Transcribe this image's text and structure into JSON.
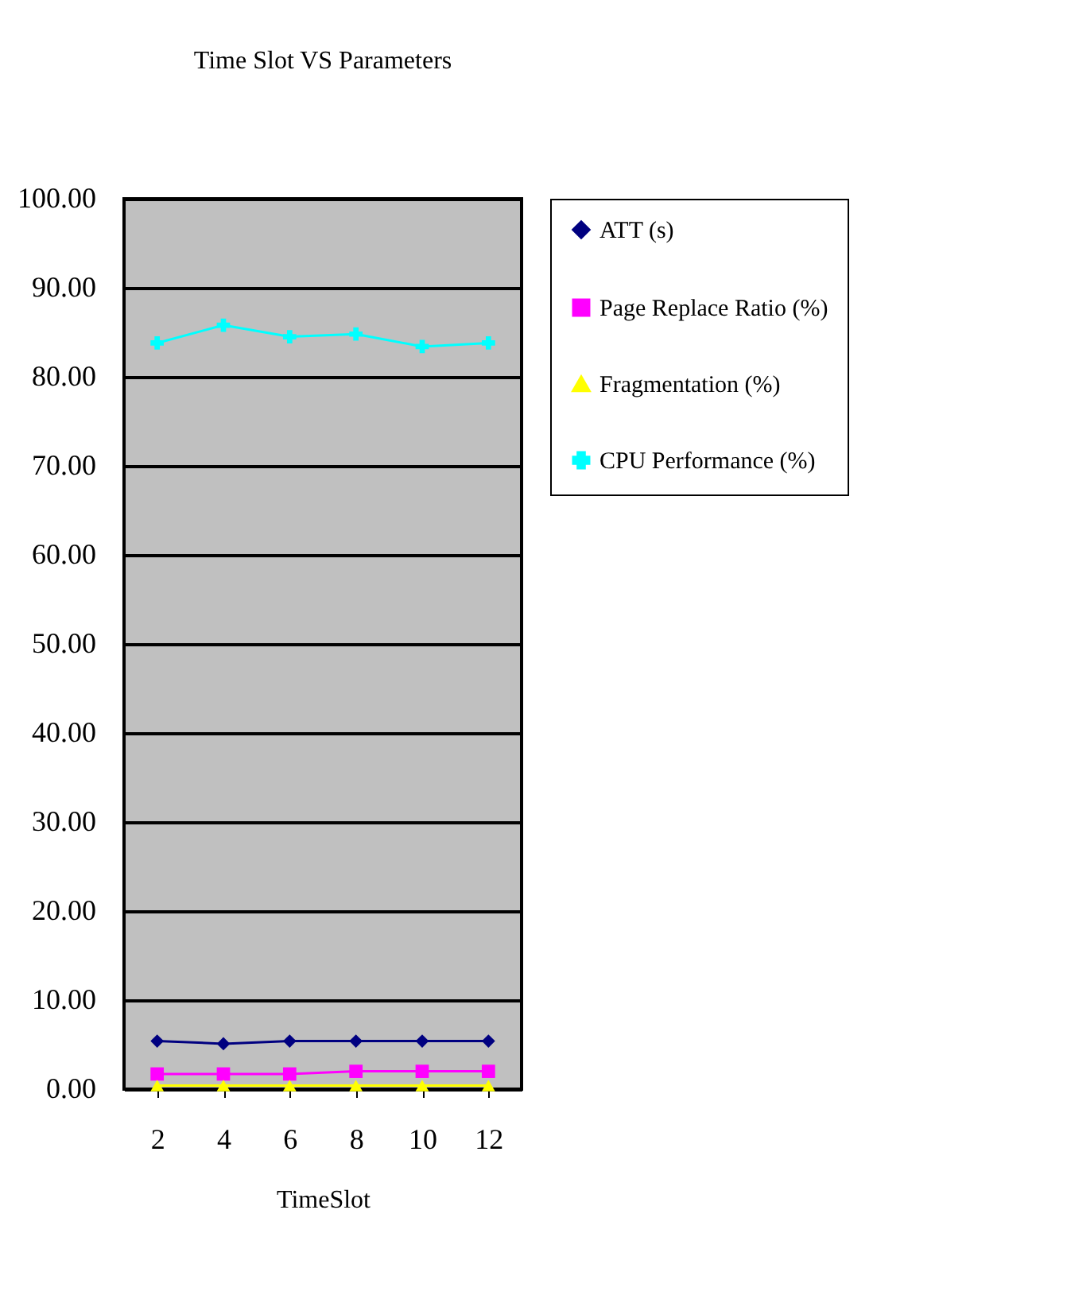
{
  "chart_data": {
    "type": "line",
    "title": "Time Slot VS Parameters",
    "xlabel": "TimeSlot",
    "categories": [
      "2",
      "4",
      "6",
      "8",
      "10",
      "12"
    ],
    "series": [
      {
        "name": "ATT (s)",
        "color": "#000080",
        "marker": "diamond",
        "values": [
          5.4,
          5.1,
          5.4,
          5.4,
          5.4,
          5.4
        ]
      },
      {
        "name": "Page Replace Ratio (%)",
        "color": "#ff00ff",
        "marker": "square",
        "values": [
          1.7,
          1.7,
          1.7,
          2.0,
          2.0,
          2.0
        ]
      },
      {
        "name": "Fragmentation (%)",
        "color": "#ffff00",
        "marker": "triangle",
        "values": [
          0.4,
          0.4,
          0.4,
          0.4,
          0.4,
          0.4
        ]
      },
      {
        "name": "CPU Performance (%)",
        "color": "#00ffff",
        "marker": "cross",
        "values": [
          83.8,
          85.8,
          84.5,
          84.8,
          83.4,
          83.8
        ]
      }
    ],
    "ylim": [
      0,
      100
    ],
    "yticks": [
      {
        "value": 0,
        "label": "0.00"
      },
      {
        "value": 10,
        "label": "10.00"
      },
      {
        "value": 20,
        "label": "20.00"
      },
      {
        "value": 30,
        "label": "30.00"
      },
      {
        "value": 40,
        "label": "40.00"
      },
      {
        "value": 50,
        "label": "50.00"
      },
      {
        "value": 60,
        "label": "60.00"
      },
      {
        "value": 70,
        "label": "70.00"
      },
      {
        "value": 80,
        "label": "80.00"
      },
      {
        "value": 90,
        "label": "90.00"
      },
      {
        "value": 100,
        "label": "100.00"
      }
    ],
    "grid": "y",
    "legend": "right"
  }
}
